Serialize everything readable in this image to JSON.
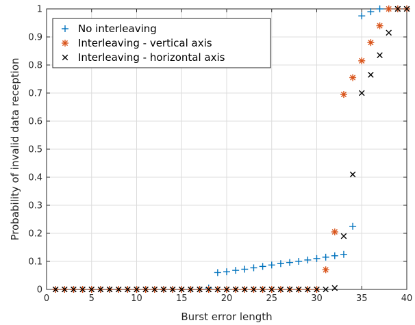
{
  "chart_data": {
    "type": "scatter",
    "title": "",
    "xlabel": "Burst error length",
    "ylabel": "Probability of invalid data reception",
    "xlim": [
      0,
      40
    ],
    "ylim": [
      0,
      1
    ],
    "xticks": [
      "0",
      "5",
      "10",
      "15",
      "20",
      "25",
      "30",
      "35",
      "40"
    ],
    "yticks": [
      "0",
      "0.1",
      "0.2",
      "0.3",
      "0.4",
      "0.5",
      "0.6",
      "0.7",
      "0.8",
      "0.9",
      "1"
    ],
    "grid": true,
    "legend_position": "top-left",
    "colors": {
      "axis": "#262626",
      "grid": "#dcdcdc"
    },
    "series": [
      {
        "name": "No interleaving",
        "marker": "plus",
        "color": "#0072BD",
        "x": [
          1,
          2,
          3,
          4,
          5,
          6,
          7,
          8,
          9,
          10,
          11,
          12,
          13,
          14,
          15,
          16,
          17,
          18,
          19,
          20,
          21,
          22,
          23,
          24,
          25,
          26,
          27,
          28,
          29,
          30,
          31,
          32,
          33,
          34,
          35,
          36,
          37,
          38,
          39,
          40
        ],
        "y": [
          0,
          0,
          0,
          0,
          0,
          0,
          0,
          0,
          0,
          0,
          0,
          0,
          0,
          0,
          0,
          0,
          0,
          0.005,
          0.06,
          0.063,
          0.068,
          0.072,
          0.077,
          0.082,
          0.087,
          0.092,
          0.096,
          0.1,
          0.105,
          0.11,
          0.115,
          0.12,
          0.125,
          0.225,
          0.975,
          0.99,
          1,
          1,
          1,
          1
        ]
      },
      {
        "name": "Interleaving - vertical axis",
        "marker": "asterisk",
        "color": "#D95319",
        "x": [
          1,
          2,
          3,
          4,
          5,
          6,
          7,
          8,
          9,
          10,
          11,
          12,
          13,
          14,
          15,
          16,
          17,
          18,
          19,
          20,
          21,
          22,
          23,
          24,
          25,
          26,
          27,
          28,
          29,
          30,
          31,
          32,
          33,
          34,
          35,
          36,
          37,
          38,
          39,
          40
        ],
        "y": [
          0,
          0,
          0,
          0,
          0,
          0,
          0,
          0,
          0,
          0,
          0,
          0,
          0,
          0,
          0,
          0,
          0,
          0,
          0,
          0,
          0,
          0,
          0,
          0,
          0,
          0,
          0,
          0,
          0,
          0,
          0.07,
          0.205,
          0.695,
          0.755,
          0.815,
          0.88,
          0.94,
          1,
          1,
          1
        ]
      },
      {
        "name": "Interleaving - horizontal axis",
        "marker": "cross",
        "color": "#000000",
        "x": [
          1,
          2,
          3,
          4,
          5,
          6,
          7,
          8,
          9,
          10,
          11,
          12,
          13,
          14,
          15,
          16,
          17,
          18,
          19,
          20,
          21,
          22,
          23,
          24,
          25,
          26,
          27,
          28,
          29,
          30,
          31,
          32,
          33,
          34,
          35,
          36,
          37,
          38,
          39,
          40
        ],
        "y": [
          0,
          0,
          0,
          0,
          0,
          0,
          0,
          0,
          0,
          0,
          0,
          0,
          0,
          0,
          0,
          0,
          0,
          0,
          0,
          0,
          0,
          0,
          0,
          0,
          0,
          0,
          0,
          0,
          0,
          0,
          0,
          0.005,
          0.19,
          0.41,
          0.7,
          0.765,
          0.835,
          0.915,
          1,
          1
        ]
      }
    ]
  }
}
